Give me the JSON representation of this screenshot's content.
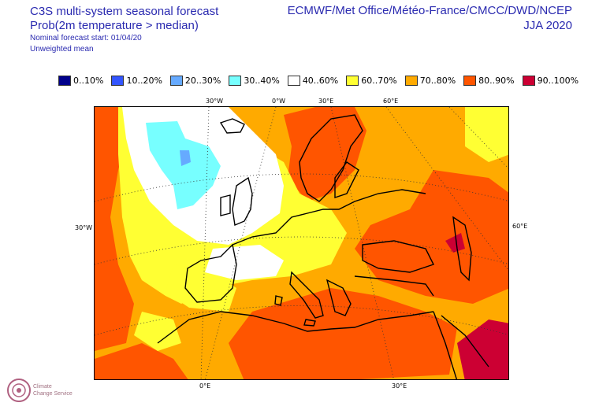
{
  "header": {
    "title": "C3S multi-system seasonal forecast",
    "subtitle": "Prob(2m temperature > median)",
    "start": "Nominal forecast start: 01/04/20",
    "mean": "Unweighted mean",
    "centres": "ECMWF/Met Office/Météo-France/CMCC/DWD/NCEP",
    "season": "JJA 2020"
  },
  "legend": [
    {
      "label": "0..10%",
      "color": "#00008b"
    },
    {
      "label": "10..20%",
      "color": "#3355ff"
    },
    {
      "label": "20..30%",
      "color": "#66aaff"
    },
    {
      "label": "30..40%",
      "color": "#77ffff"
    },
    {
      "label": "40..60%",
      "color": "#ffffff"
    },
    {
      "label": "60..70%",
      "color": "#ffff33"
    },
    {
      "label": "70..80%",
      "color": "#ffaa00"
    },
    {
      "label": "80..90%",
      "color": "#ff5500"
    },
    {
      "label": "90..100%",
      "color": "#cc0033"
    }
  ],
  "ticks": {
    "top": [
      "30°W",
      "0°W",
      "30°E",
      "60°E"
    ],
    "left": "30°W",
    "right": "60°E",
    "bottom": [
      "0°E",
      "30°E"
    ]
  },
  "logo": {
    "line1": "Climate",
    "line2": "Change Service"
  }
}
